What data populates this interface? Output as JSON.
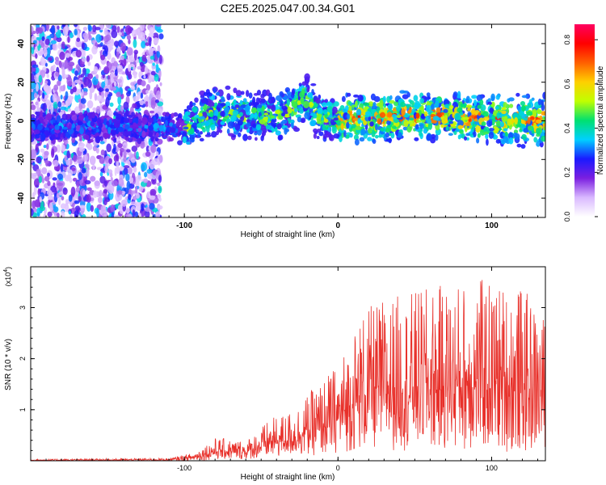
{
  "title": "C2E5.2025.047.00.34.G01",
  "chart_data": [
    {
      "type": "heatmap",
      "title": "C2E5.2025.047.00.34.G01",
      "xlabel": "Height of straight line (km)",
      "ylabel": "Frequency (Hz)",
      "xlim": [
        -200,
        135
      ],
      "ylim": [
        -50,
        50
      ],
      "x_ticks": [
        -100,
        0,
        100
      ],
      "y_ticks": [
        -40,
        -20,
        0,
        20,
        40
      ],
      "colorbar": {
        "label": "Normalized spectral amplitude",
        "range": [
          0.0,
          0.87
        ],
        "ticks": [
          0.0,
          0.2,
          0.4,
          0.6,
          0.8
        ],
        "colors": [
          "#ffffff",
          "#d9b8ff",
          "#7b1fe0",
          "#1a1aff",
          "#00d0ff",
          "#00e070",
          "#c0ff00",
          "#ffd000",
          "#ff6000",
          "#ff0000",
          "#ff0060"
        ]
      },
      "signal_band": {
        "center_hz": [
          {
            "x": -120,
            "y": -3
          },
          {
            "x": -100,
            "y": -4
          },
          {
            "x": -90,
            "y": 1
          },
          {
            "x": -80,
            "y": 5
          },
          {
            "x": -60,
            "y": 3
          },
          {
            "x": -40,
            "y": 2
          },
          {
            "x": -30,
            "y": 6
          },
          {
            "x": -22,
            "y": 12
          },
          {
            "x": -10,
            "y": 1
          },
          {
            "x": 0,
            "y": 1
          },
          {
            "x": 50,
            "y": 3
          },
          {
            "x": 100,
            "y": 1
          },
          {
            "x": 135,
            "y": 0
          }
        ],
        "noise_region_end_km": -115
      }
    },
    {
      "type": "line",
      "xlabel": "Height of straight line (km)",
      "ylabel": "SNR (10 * v/v)",
      "y_multiplier": "(x10⁴)",
      "y_multiplier_base": "(x10",
      "y_multiplier_exp": "4",
      "xlim": [
        -200,
        135
      ],
      "ylim": [
        0,
        3.8
      ],
      "x_ticks": [
        -100,
        0,
        100
      ],
      "y_ticks": [
        1,
        2,
        3
      ],
      "color": "#e8302a",
      "envelope": [
        {
          "x": -200,
          "lo": 0,
          "hi": 0.03
        },
        {
          "x": -110,
          "lo": 0,
          "hi": 0.05
        },
        {
          "x": -95,
          "lo": 0,
          "hi": 0.15
        },
        {
          "x": -80,
          "lo": 0.02,
          "hi": 0.45
        },
        {
          "x": -60,
          "lo": 0.03,
          "hi": 0.4
        },
        {
          "x": -45,
          "lo": 0.05,
          "hi": 0.8
        },
        {
          "x": -30,
          "lo": 0.1,
          "hi": 1.0
        },
        {
          "x": -10,
          "lo": 0.1,
          "hi": 1.6
        },
        {
          "x": 0,
          "lo": 0.15,
          "hi": 1.9
        },
        {
          "x": 15,
          "lo": 0.2,
          "hi": 2.9
        },
        {
          "x": 30,
          "lo": 0.2,
          "hi": 3.2
        },
        {
          "x": 60,
          "lo": 0.2,
          "hi": 3.4
        },
        {
          "x": 90,
          "lo": 0.2,
          "hi": 3.6
        },
        {
          "x": 120,
          "lo": 0.15,
          "hi": 3.4
        },
        {
          "x": 135,
          "lo": 0.2,
          "hi": 2.8
        }
      ]
    }
  ]
}
